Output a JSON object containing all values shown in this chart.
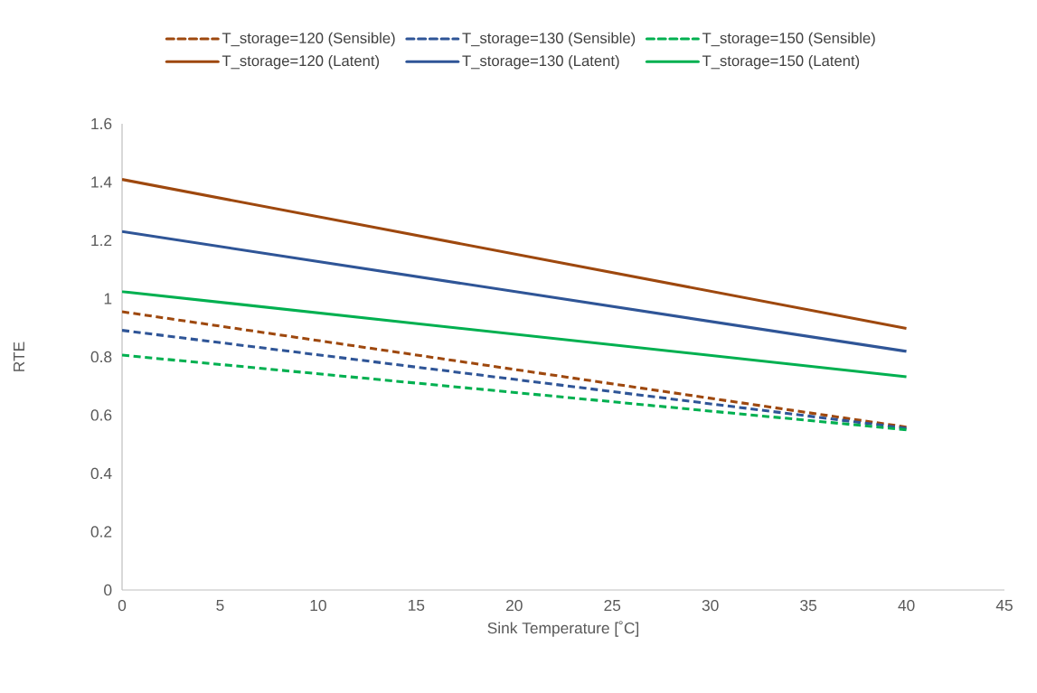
{
  "chart_data": {
    "type": "line",
    "xlabel": "Sink Temperature [˚C]",
    "ylabel": "RTE",
    "x": [
      0,
      40
    ],
    "series": [
      {
        "name": "T_storage=120 (Sensible)",
        "color": "#9e480e",
        "line_style": "dashed",
        "values": [
          0.955,
          0.559
        ]
      },
      {
        "name": "T_storage=130 (Sensible)",
        "color": "#2f5597",
        "line_style": "dashed",
        "values": [
          0.891,
          0.555
        ]
      },
      {
        "name": "T_storage=150 (Sensible)",
        "color": "#00b050",
        "line_style": "dashed",
        "values": [
          0.806,
          0.55
        ]
      },
      {
        "name": "T_storage=120 (Latent)",
        "color": "#9e480e",
        "line_style": "solid",
        "values": [
          1.409,
          0.898
        ]
      },
      {
        "name": "T_storage=130 (Latent)",
        "color": "#2f5597",
        "line_style": "solid",
        "values": [
          1.23,
          0.819
        ]
      },
      {
        "name": "T_storage=150 (Latent)",
        "color": "#00b050",
        "line_style": "solid",
        "values": [
          1.024,
          0.732
        ]
      }
    ],
    "xlim": [
      0,
      45
    ],
    "xticks": [
      0,
      5,
      10,
      15,
      20,
      25,
      30,
      35,
      40,
      45
    ],
    "ylim": [
      0,
      1.6
    ],
    "yticks": [
      0,
      0.2,
      0.4,
      0.6,
      0.8,
      1,
      1.2,
      1.4,
      1.6
    ],
    "grid": false,
    "legend": "top",
    "marker": "none"
  }
}
